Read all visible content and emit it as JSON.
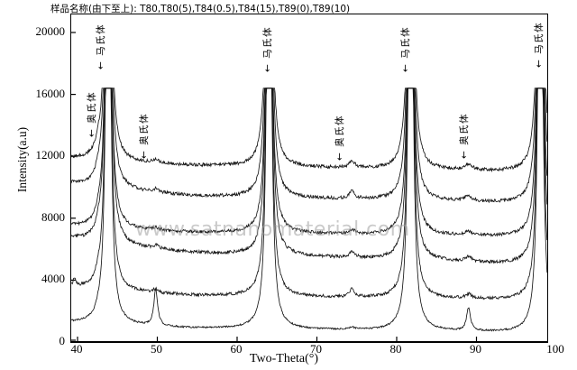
{
  "figure": {
    "watermark": "www.satnanomaterial.com",
    "background_color": "#ffffff",
    "curve_color": "#151515"
  },
  "chart_data": {
    "type": "line",
    "title": "样品名称(由下至上): T80,T80(5),T84(0.5),T84(15),T89(0),T89(10)",
    "xlabel": "Two-Theta(°)",
    "ylabel": "Intensity(a.u)",
    "xlim": [
      39.2,
      98.9
    ],
    "ylim": [
      0,
      21150
    ],
    "x_ticks": [
      40,
      50,
      60,
      70,
      80,
      90,
      100
    ],
    "y_ticks": [
      0,
      4000,
      8000,
      12000,
      16000,
      20000
    ],
    "grid": false,
    "legend_position": "none",
    "series_order": "bottom to top, vertically offset stacked XRD patterns",
    "saturation_level": 16400,
    "martensite_peaks": {
      "positions": [
        43.85,
        64.0,
        81.75,
        98.0
      ],
      "amplitude": 40000,
      "width": 0.28
    },
    "series": [
      {
        "name": "T80",
        "baseline": {
          "left": 1250,
          "mid": 875,
          "right": 585
        },
        "noise": 55,
        "austenite_peaks": [
          [
            42.6,
            250,
            0.4
          ],
          [
            49.8,
            2350,
            0.28
          ],
          [
            74.4,
            130,
            0.4
          ],
          [
            89.0,
            1450,
            0.3
          ]
        ]
      },
      {
        "name": "T80(5)",
        "baseline": {
          "left": 3500,
          "mid": 2975,
          "right": 2680
        },
        "noise": 95,
        "austenite_peaks": [
          [
            39.6,
            500,
            0.18
          ],
          [
            42.6,
            420,
            0.4
          ],
          [
            49.8,
            230,
            0.4
          ],
          [
            74.4,
            550,
            0.33
          ],
          [
            89.0,
            270,
            0.45
          ]
        ]
      },
      {
        "name": "T84(0.5)",
        "baseline": {
          "left": 6700,
          "mid": 5715,
          "right": 4955
        },
        "noise": 105,
        "austenite_peaks": [
          [
            42.6,
            400,
            0.4
          ],
          [
            49.8,
            200,
            0.45
          ],
          [
            74.4,
            380,
            0.4
          ],
          [
            89.0,
            300,
            0.45
          ]
        ]
      },
      {
        "name": "T84(15)",
        "baseline": {
          "left": 7465,
          "mid": 7055,
          "right": 6765
        },
        "noise": 100,
        "austenite_peaks": [
          [
            42.6,
            350,
            0.4
          ],
          [
            49.8,
            150,
            0.45
          ],
          [
            74.4,
            250,
            0.45
          ],
          [
            89.0,
            250,
            0.5
          ]
        ]
      },
      {
        "name": "T89(0)",
        "baseline": {
          "left": 10200,
          "mid": 9390,
          "right": 8920
        },
        "noise": 110,
        "austenite_peaks": [
          [
            42.6,
            450,
            0.4
          ],
          [
            49.8,
            220,
            0.45
          ],
          [
            74.4,
            480,
            0.4
          ],
          [
            89.0,
            330,
            0.5
          ]
        ]
      },
      {
        "name": "T89(10)",
        "baseline": {
          "left": 11840,
          "mid": 11370,
          "right": 10960
        },
        "noise": 110,
        "austenite_peaks": [
          [
            42.6,
            450,
            0.4
          ],
          [
            49.8,
            250,
            0.45
          ],
          [
            74.4,
            430,
            0.4
          ],
          [
            89.0,
            380,
            0.5
          ]
        ]
      }
    ],
    "annotations": [
      {
        "phase": "austenite",
        "label": "奥氏体",
        "two_theta": 42.0,
        "tip_intensity": 13200
      },
      {
        "phase": "martensite",
        "label": "马氏体",
        "two_theta": 43.1,
        "tip_intensity": 17550
      },
      {
        "phase": "austenite",
        "label": "奥氏体",
        "two_theta": 48.5,
        "tip_intensity": 11800
      },
      {
        "phase": "martensite",
        "label": "马氏体",
        "two_theta": 64.0,
        "tip_intensity": 17400
      },
      {
        "phase": "austenite",
        "label": "奥氏体",
        "two_theta": 73.1,
        "tip_intensity": 11650
      },
      {
        "phase": "martensite",
        "label": "马氏体",
        "two_theta": 81.3,
        "tip_intensity": 17400
      },
      {
        "phase": "austenite",
        "label": "奥氏体",
        "two_theta": 88.7,
        "tip_intensity": 11800
      },
      {
        "phase": "martensite",
        "label": "马氏体",
        "two_theta": 98.0,
        "tip_intensity": 17650
      }
    ]
  }
}
